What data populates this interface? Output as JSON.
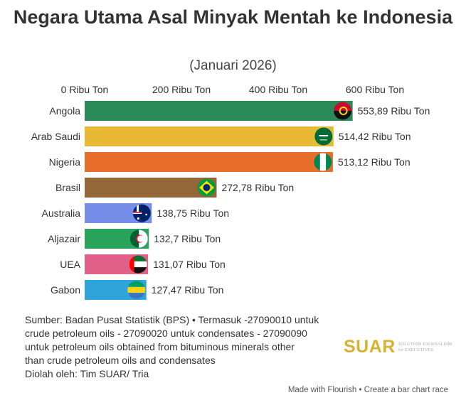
{
  "chart_data": {
    "type": "bar",
    "orientation": "horizontal",
    "title": "Negara Utama Asal Minyak Mentah ke Indonesia",
    "subtitle": "(Januari 2026)",
    "categories": [
      "Angola",
      "Arab Saudi",
      "Nigeria",
      "Brasil",
      "Australia",
      "Aljazair",
      "UEA",
      "Gabon"
    ],
    "values": [
      553.89,
      514.42,
      513.12,
      272.78,
      138.75,
      132.7,
      131.07,
      127.47
    ],
    "value_labels": [
      "553,89 Ribu Ton",
      "514,42 Ribu Ton",
      "513,12 Ribu Ton",
      "272,78 Ribu Ton",
      "138,75 Ribu Ton",
      "132,7 Ribu Ton",
      "131,07 Ribu Ton",
      "127,47 Ribu Ton"
    ],
    "colors": [
      "#2a8a57",
      "#e9b934",
      "#e66d2a",
      "#956637",
      "#778ee8",
      "#2aa45c",
      "#e0608a",
      "#2ea3dc"
    ],
    "flags": [
      "angola-flag",
      "saudi-flag",
      "nigeria-flag",
      "brazil-flag",
      "australia-flag",
      "algeria-flag",
      "uae-flag",
      "gabon-flag"
    ],
    "xticks": [
      0,
      200,
      400,
      600
    ],
    "xtick_labels": [
      "0 Ribu Ton",
      "200 Ribu Ton",
      "400 Ribu Ton",
      "600 Ribu Ton"
    ],
    "xlim": [
      0,
      600
    ],
    "xlabel": "",
    "ylabel": ""
  },
  "footer": {
    "lines": [
      "Sumber: Badan Pusat Statistik (BPS) • Termasuk -27090010 untuk",
      "crude petroleum oils - 27090020 untuk condensates - 27090090",
      "untuk petroleum oils obtained from bituminous minerals other",
      "than crude petroleum oils and condensates",
      "Diolah oleh: Tim SUAR/ Tria"
    ],
    "logo_word": "SUAR",
    "logo_tag_1": "SOLUTION JOURNALISM",
    "logo_tag_2": "for EXECUTIVES",
    "credit": "Made with Flourish • Create a bar chart race"
  }
}
